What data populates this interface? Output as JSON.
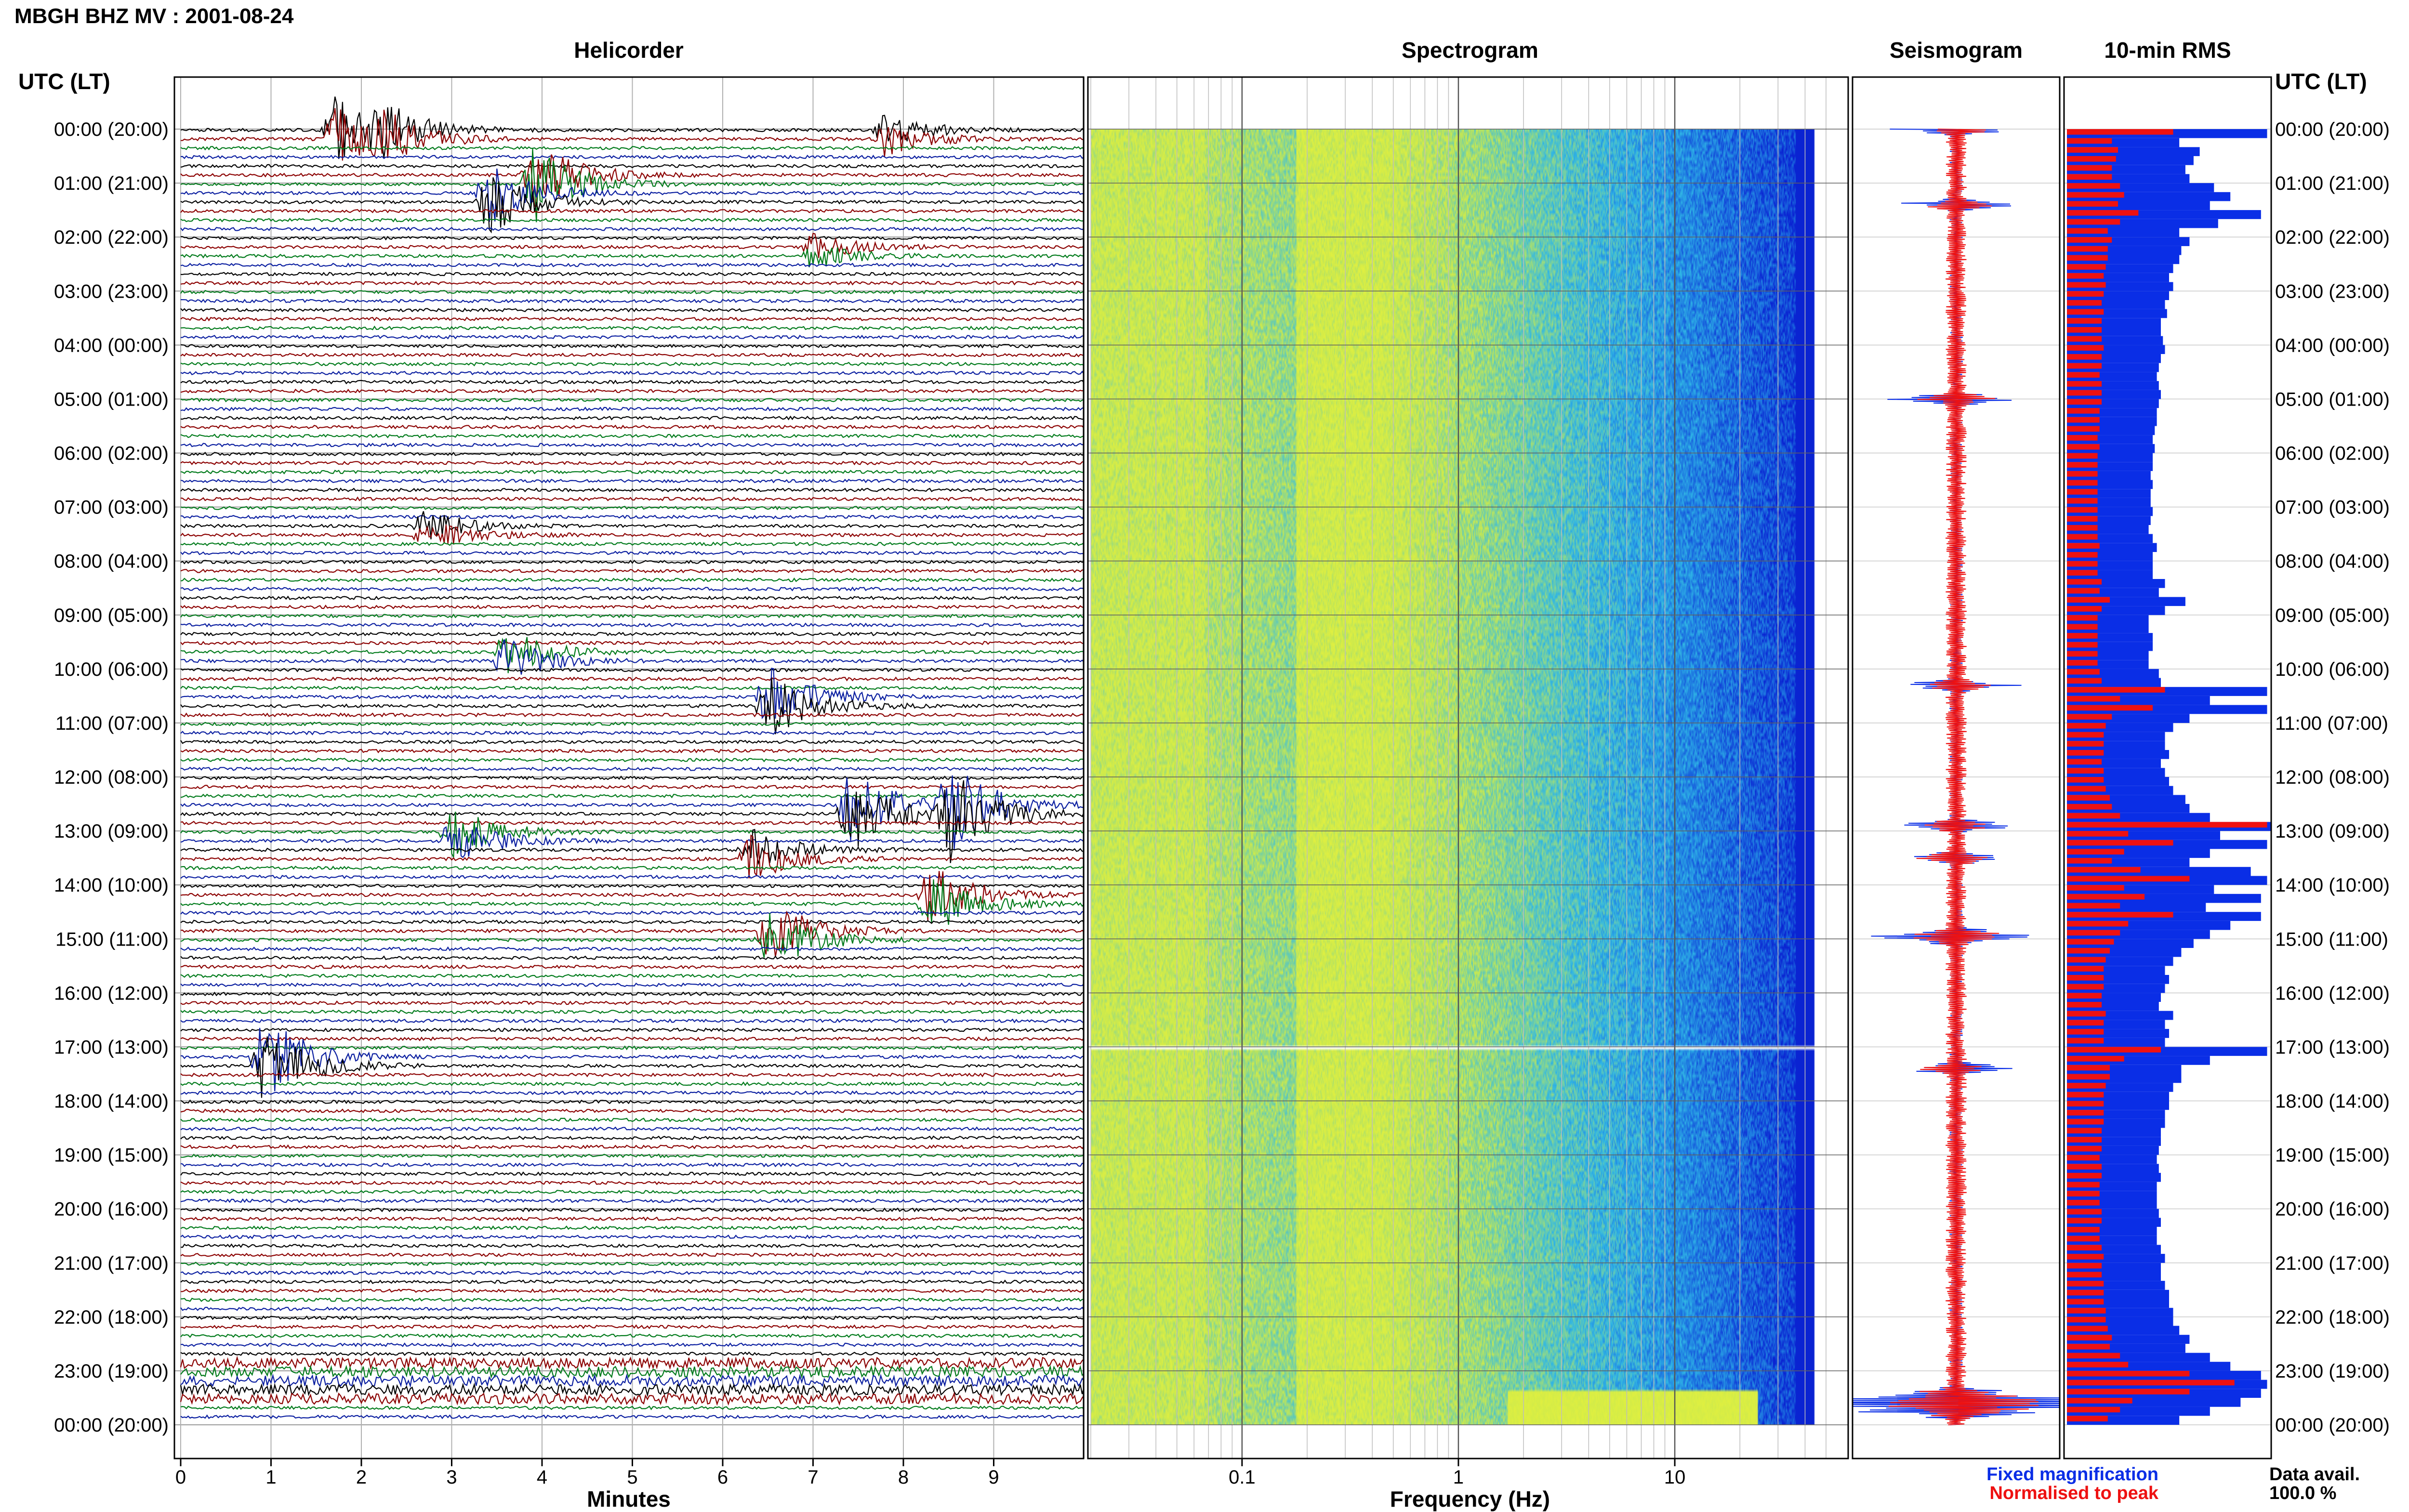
{
  "header": {
    "station_title": "MBGH BHZ MV : 2001-08-24",
    "time_axis_label": "UTC (LT)"
  },
  "panels": {
    "helicorder": "Helicorder",
    "spectrogram": "Spectrogram",
    "seismogram": "Seismogram",
    "rms": "10-min RMS"
  },
  "legend": {
    "fixed": "Fixed magnification",
    "normalised": "Normalised to peak",
    "fixed_color": "#0a2ee6",
    "normalised_color": "#ee1111",
    "availability_label": "Data avail.",
    "availability_value": "100.0 %"
  },
  "chart_data": [
    {
      "type": "helicorder",
      "title": "Helicorder",
      "xlabel": "Minutes",
      "xlim": [
        0,
        10
      ],
      "x_ticks": [
        "0",
        "1",
        "2",
        "3",
        "4",
        "5",
        "6",
        "7",
        "8",
        "9"
      ],
      "rows": 144,
      "row_minutes": 10,
      "trace_colors": [
        "#000000",
        "#8b0000",
        "#007a1a",
        "#0a1ea0"
      ],
      "events": [
        {
          "utc_hour": 0.0,
          "minute": 1.7,
          "amp": 1.0
        },
        {
          "utc_hour": 0.0,
          "minute": 2.2,
          "amp": 0.7
        },
        {
          "utc_hour": 0.0,
          "minute": 7.8,
          "amp": 0.5
        },
        {
          "utc_hour": 0.8,
          "minute": 3.9,
          "amp": 1.2
        },
        {
          "utc_hour": 1.2,
          "minute": 3.4,
          "amp": 1.0
        },
        {
          "utc_hour": 2.1,
          "minute": 7.0,
          "amp": 0.4
        },
        {
          "utc_hour": 7.4,
          "minute": 2.7,
          "amp": 0.5
        },
        {
          "utc_hour": 9.6,
          "minute": 3.6,
          "amp": 0.7
        },
        {
          "utc_hour": 10.5,
          "minute": 6.5,
          "amp": 1.0
        },
        {
          "utc_hour": 12.5,
          "minute": 7.4,
          "amp": 1.2
        },
        {
          "utc_hour": 12.5,
          "minute": 8.5,
          "amp": 1.4
        },
        {
          "utc_hour": 13.0,
          "minute": 3.0,
          "amp": 0.8
        },
        {
          "utc_hour": 13.3,
          "minute": 6.3,
          "amp": 0.7
        },
        {
          "utc_hour": 14.2,
          "minute": 8.3,
          "amp": 1.0
        },
        {
          "utc_hour": 14.8,
          "minute": 6.5,
          "amp": 1.0
        },
        {
          "utc_hour": 17.1,
          "minute": 0.9,
          "amp": 1.4
        }
      ]
    },
    {
      "type": "heatmap",
      "title": "Spectrogram",
      "xlabel": "Frequency (Hz)",
      "x_scale": "log",
      "xlim": [
        0.02,
        50
      ],
      "x_ticks": [
        "0.1",
        "1",
        "10"
      ],
      "gap_utc_hour": 17.0
    },
    {
      "type": "line",
      "title": "Seismogram",
      "series": [
        {
          "name": "Fixed magnification",
          "color": "#0a2ee6"
        },
        {
          "name": "Normalised to peak",
          "color": "#ee1111"
        }
      ],
      "spikes_utc_hour": [
        0.0,
        1.4,
        5.0,
        10.3,
        12.9,
        13.5,
        14.9,
        15.0,
        17.4,
        23.6
      ]
    },
    {
      "type": "bar",
      "title": "10-min RMS",
      "orientation": "horizontal",
      "bins": 144,
      "series": [
        {
          "name": "Fixed magnification",
          "color": "#0a2ee6",
          "values": [
            0.98,
            0.55,
            0.65,
            0.62,
            0.58,
            0.6,
            0.72,
            0.8,
            0.7,
            0.95,
            0.74,
            0.55,
            0.6,
            0.56,
            0.55,
            0.52,
            0.5,
            0.52,
            0.5,
            0.48,
            0.49,
            0.46,
            0.46,
            0.47,
            0.48,
            0.46,
            0.45,
            0.44,
            0.45,
            0.46,
            0.45,
            0.44,
            0.44,
            0.43,
            0.42,
            0.43,
            0.42,
            0.42,
            0.41,
            0.42,
            0.41,
            0.41,
            0.42,
            0.41,
            0.4,
            0.42,
            0.44,
            0.42,
            0.42,
            0.42,
            0.48,
            0.45,
            0.58,
            0.48,
            0.4,
            0.4,
            0.42,
            0.42,
            0.4,
            0.4,
            0.45,
            0.46,
            0.98,
            0.7,
            0.98,
            0.6,
            0.52,
            0.48,
            0.48,
            0.5,
            0.46,
            0.48,
            0.5,
            0.52,
            0.58,
            0.6,
            0.7,
            1.0,
            0.75,
            0.98,
            0.7,
            0.6,
            0.9,
            0.98,
            0.72,
            0.95,
            0.68,
            0.95,
            0.8,
            0.7,
            0.62,
            0.56,
            0.52,
            0.48,
            0.5,
            0.48,
            0.46,
            0.45,
            0.52,
            0.48,
            0.5,
            0.48,
            0.98,
            0.7,
            0.56,
            0.56,
            0.52,
            0.5,
            0.5,
            0.48,
            0.48,
            0.46,
            0.46,
            0.45,
            0.44,
            0.45,
            0.46,
            0.44,
            0.44,
            0.44,
            0.45,
            0.46,
            0.44,
            0.44,
            0.46,
            0.48,
            0.46,
            0.46,
            0.48,
            0.5,
            0.5,
            0.52,
            0.52,
            0.55,
            0.6,
            0.58,
            0.7,
            0.8,
            0.95,
            0.98,
            0.95,
            0.85,
            0.7,
            0.55
          ]
        },
        {
          "name": "Normalised to peak",
          "color": "#ee1111",
          "values": [
            0.52,
            0.22,
            0.25,
            0.24,
            0.22,
            0.22,
            0.26,
            0.28,
            0.25,
            0.35,
            0.26,
            0.2,
            0.22,
            0.2,
            0.2,
            0.19,
            0.18,
            0.19,
            0.18,
            0.17,
            0.18,
            0.17,
            0.17,
            0.17,
            0.18,
            0.17,
            0.17,
            0.16,
            0.17,
            0.17,
            0.17,
            0.16,
            0.16,
            0.16,
            0.15,
            0.16,
            0.15,
            0.15,
            0.15,
            0.15,
            0.15,
            0.15,
            0.15,
            0.15,
            0.15,
            0.15,
            0.16,
            0.15,
            0.15,
            0.15,
            0.17,
            0.16,
            0.21,
            0.17,
            0.15,
            0.15,
            0.15,
            0.15,
            0.15,
            0.15,
            0.16,
            0.17,
            0.48,
            0.26,
            0.42,
            0.22,
            0.19,
            0.18,
            0.18,
            0.18,
            0.17,
            0.18,
            0.18,
            0.19,
            0.21,
            0.22,
            0.26,
            0.98,
            0.3,
            0.52,
            0.28,
            0.22,
            0.36,
            0.6,
            0.28,
            0.38,
            0.26,
            0.52,
            0.3,
            0.26,
            0.23,
            0.21,
            0.19,
            0.18,
            0.18,
            0.18,
            0.17,
            0.17,
            0.19,
            0.18,
            0.18,
            0.18,
            0.46,
            0.28,
            0.21,
            0.21,
            0.19,
            0.18,
            0.18,
            0.18,
            0.18,
            0.17,
            0.17,
            0.17,
            0.16,
            0.17,
            0.17,
            0.16,
            0.16,
            0.16,
            0.17,
            0.17,
            0.16,
            0.16,
            0.17,
            0.18,
            0.17,
            0.17,
            0.18,
            0.18,
            0.18,
            0.19,
            0.19,
            0.2,
            0.22,
            0.21,
            0.26,
            0.3,
            0.6,
            0.82,
            0.6,
            0.32,
            0.26,
            0.2
          ]
        }
      ]
    }
  ],
  "time_labels": [
    "00:00 (20:00)",
    "01:00 (21:00)",
    "02:00 (22:00)",
    "03:00 (23:00)",
    "04:00 (00:00)",
    "05:00 (01:00)",
    "06:00 (02:00)",
    "07:00 (03:00)",
    "08:00 (04:00)",
    "09:00 (05:00)",
    "10:00 (06:00)",
    "11:00 (07:00)",
    "12:00 (08:00)",
    "13:00 (09:00)",
    "14:00 (10:00)",
    "15:00 (11:00)",
    "16:00 (12:00)",
    "17:00 (13:00)",
    "18:00 (14:00)",
    "19:00 (15:00)",
    "20:00 (16:00)",
    "21:00 (17:00)",
    "22:00 (18:00)",
    "23:00 (19:00)",
    "00:00 (20:00)"
  ],
  "colors": {
    "spectro_low": "#e6f23c",
    "spectro_mid": "#2fb6e6",
    "spectro_high": "#0a23d2"
  }
}
